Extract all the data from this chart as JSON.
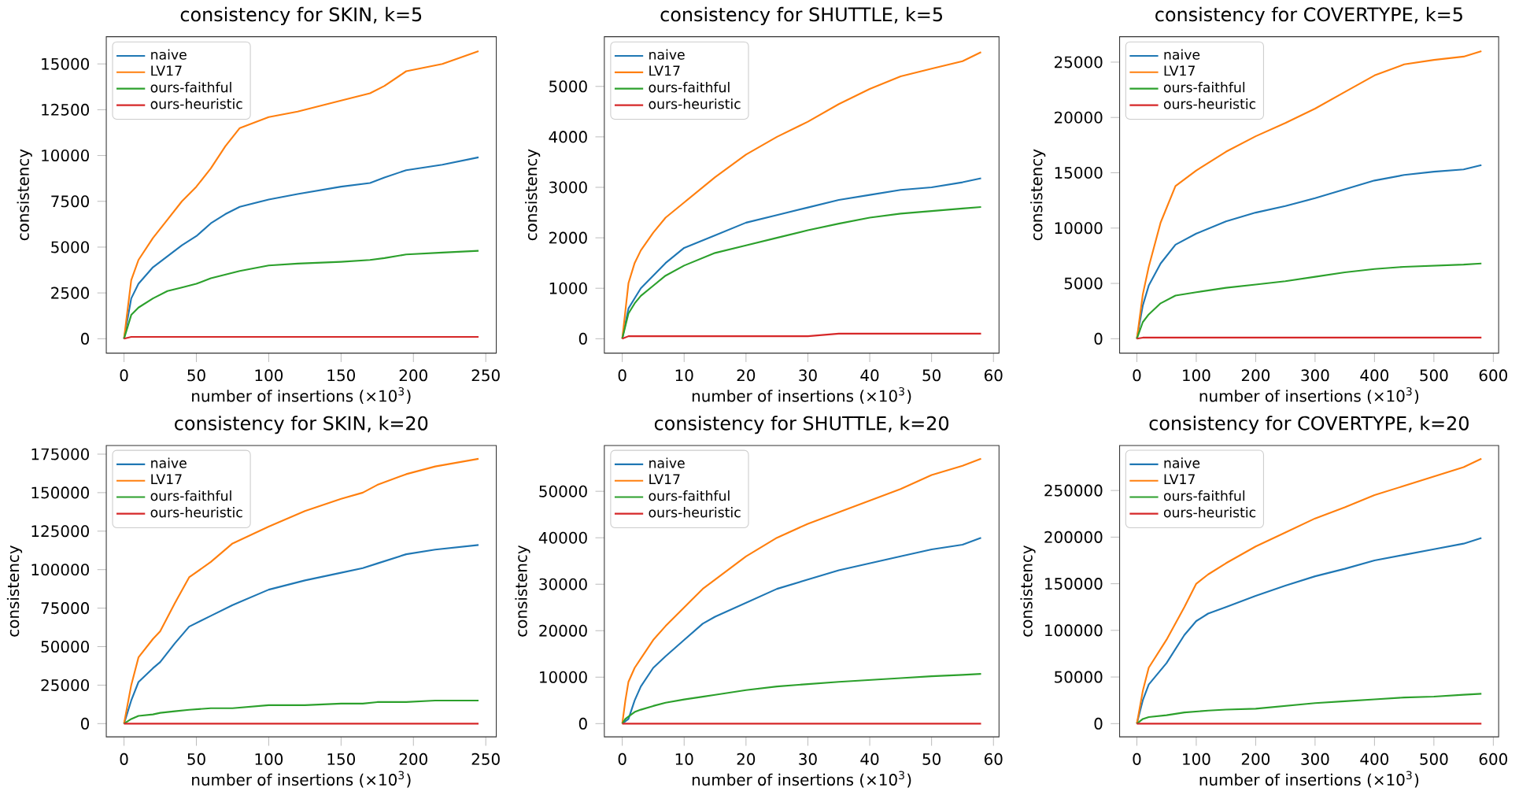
{
  "chart_data": [
    {
      "type": "line",
      "title": "consistency for SKIN, k=5",
      "xlabel": "number of insertions (×10$^{3}$)",
      "ylabel": "consistency",
      "legend": "top left",
      "x": [
        0,
        5,
        10,
        20,
        30,
        40,
        50,
        60,
        70,
        80,
        100,
        120,
        150,
        170,
        180,
        195,
        220,
        245
      ],
      "xlim": [
        -12.25,
        257.25
      ],
      "ylim": [
        -785,
        16485
      ],
      "xticks": [
        0,
        50,
        100,
        150,
        200,
        250
      ],
      "yticks": [
        0,
        2500,
        5000,
        7500,
        10000,
        12500,
        15000
      ],
      "series": [
        {
          "name": "naive",
          "color": "#1f77b4",
          "values": [
            0,
            2200,
            3000,
            3900,
            4500,
            5100,
            5600,
            6300,
            6800,
            7200,
            7600,
            7900,
            8300,
            8500,
            8800,
            9200,
            9500,
            9900
          ]
        },
        {
          "name": "LV17",
          "color": "#ff7f0e",
          "values": [
            0,
            3200,
            4300,
            5500,
            6500,
            7500,
            8300,
            9300,
            10500,
            11500,
            12100,
            12400,
            13000,
            13400,
            13800,
            14600,
            15000,
            15700
          ]
        },
        {
          "name": "ours-faithful",
          "color": "#2ca02c",
          "values": [
            0,
            1300,
            1700,
            2200,
            2600,
            2800,
            3000,
            3300,
            3500,
            3700,
            4000,
            4100,
            4200,
            4300,
            4400,
            4600,
            4700,
            4800
          ]
        },
        {
          "name": "ours-heuristic",
          "color": "#d62728",
          "values": [
            0,
            100,
            100,
            100,
            100,
            100,
            100,
            100,
            100,
            100,
            100,
            100,
            100,
            100,
            100,
            100,
            100,
            100
          ]
        }
      ]
    },
    {
      "type": "line",
      "title": "consistency for SHUTTLE, k=5",
      "xlabel": "number of insertions (×10$^{3}$)",
      "ylabel": "consistency",
      "legend": "top left",
      "x": [
        0,
        1,
        2,
        3,
        5,
        7,
        10,
        15,
        20,
        25,
        30,
        35,
        40,
        45,
        50,
        55,
        58
      ],
      "xlim": [
        -2.9,
        60.9
      ],
      "ylim": [
        -285,
        5985
      ],
      "xticks": [
        0,
        10,
        20,
        30,
        40,
        50,
        60
      ],
      "yticks": [
        0,
        1000,
        2000,
        3000,
        4000,
        5000
      ],
      "series": [
        {
          "name": "naive",
          "color": "#1f77b4",
          "values": [
            0,
            600,
            800,
            1000,
            1250,
            1500,
            1800,
            2050,
            2300,
            2450,
            2600,
            2750,
            2850,
            2950,
            3000,
            3100,
            3180
          ]
        },
        {
          "name": "LV17",
          "color": "#ff7f0e",
          "values": [
            0,
            1100,
            1500,
            1750,
            2100,
            2400,
            2700,
            3200,
            3650,
            4000,
            4300,
            4650,
            4950,
            5200,
            5350,
            5500,
            5680
          ]
        },
        {
          "name": "ours-faithful",
          "color": "#2ca02c",
          "values": [
            0,
            500,
            700,
            850,
            1050,
            1250,
            1450,
            1700,
            1850,
            2000,
            2150,
            2280,
            2400,
            2480,
            2530,
            2580,
            2610
          ]
        },
        {
          "name": "ours-heuristic",
          "color": "#d62728",
          "values": [
            0,
            50,
            50,
            50,
            50,
            50,
            50,
            50,
            50,
            50,
            50,
            100,
            100,
            100,
            100,
            100,
            100
          ]
        }
      ]
    },
    {
      "type": "line",
      "title": "consistency for COVERTYPE, k=5",
      "xlabel": "number of insertions (×10$^{3}$)",
      "ylabel": "consistency",
      "legend": "top left",
      "x": [
        0,
        10,
        20,
        40,
        65,
        100,
        150,
        200,
        250,
        300,
        350,
        400,
        450,
        500,
        550,
        580
      ],
      "xlim": [
        -29,
        609
      ],
      "ylim": [
        -1300,
        27300
      ],
      "xticks": [
        0,
        100,
        200,
        300,
        400,
        500,
        600
      ],
      "yticks": [
        0,
        5000,
        10000,
        15000,
        20000,
        25000
      ],
      "series": [
        {
          "name": "naive",
          "color": "#1f77b4",
          "values": [
            0,
            3000,
            4800,
            6800,
            8500,
            9500,
            10600,
            11400,
            12000,
            12700,
            13500,
            14300,
            14800,
            15100,
            15300,
            15700
          ]
        },
        {
          "name": "LV17",
          "color": "#ff7f0e",
          "values": [
            0,
            4000,
            6500,
            10500,
            13800,
            15200,
            16900,
            18300,
            19500,
            20800,
            22300,
            23800,
            24800,
            25200,
            25500,
            26000
          ]
        },
        {
          "name": "ours-faithful",
          "color": "#2ca02c",
          "values": [
            0,
            1500,
            2200,
            3200,
            3900,
            4200,
            4600,
            4900,
            5200,
            5600,
            6000,
            6300,
            6500,
            6600,
            6700,
            6800
          ]
        },
        {
          "name": "ours-heuristic",
          "color": "#d62728",
          "values": [
            0,
            100,
            100,
            100,
            100,
            100,
            100,
            100,
            100,
            100,
            100,
            100,
            100,
            100,
            100,
            100
          ]
        }
      ]
    },
    {
      "type": "line",
      "title": "consistency for SKIN, k=20",
      "xlabel": "number of insertions (×10$^{3}$)",
      "ylabel": "consistency",
      "legend": "top left",
      "x": [
        0,
        5,
        10,
        20,
        25,
        35,
        45,
        60,
        75,
        100,
        125,
        150,
        165,
        175,
        195,
        215,
        245
      ],
      "xlim": [
        -12.25,
        257.25
      ],
      "ylim": [
        -8600,
        180600
      ],
      "xticks": [
        0,
        50,
        100,
        150,
        200,
        250
      ],
      "yticks": [
        0,
        25000,
        50000,
        75000,
        100000,
        125000,
        150000,
        175000
      ],
      "series": [
        {
          "name": "naive",
          "color": "#1f77b4",
          "values": [
            0,
            15000,
            27000,
            36000,
            40000,
            52000,
            63000,
            70000,
            77000,
            87000,
            93000,
            98000,
            101000,
            104000,
            110000,
            113000,
            116000
          ]
        },
        {
          "name": "LV17",
          "color": "#ff7f0e",
          "values": [
            0,
            25000,
            43000,
            55000,
            60000,
            78000,
            95000,
            105000,
            117000,
            128000,
            138000,
            146000,
            150000,
            155000,
            162000,
            167000,
            172000
          ]
        },
        {
          "name": "ours-faithful",
          "color": "#2ca02c",
          "values": [
            0,
            3000,
            5000,
            6000,
            7000,
            8000,
            9000,
            10000,
            10000,
            12000,
            12000,
            13000,
            13000,
            14000,
            14000,
            15000,
            15000
          ]
        },
        {
          "name": "ours-heuristic",
          "color": "#d62728",
          "values": [
            0,
            0,
            0,
            0,
            0,
            0,
            0,
            0,
            0,
            0,
            0,
            0,
            0,
            0,
            0,
            0,
            0
          ]
        }
      ]
    },
    {
      "type": "line",
      "title": "consistency for SHUTTLE, k=20",
      "xlabel": "number of insertions (×10$^{3}$)",
      "ylabel": "consistency",
      "legend": "top left",
      "x": [
        0,
        0.5,
        1,
        2,
        3,
        5,
        7,
        10,
        13,
        15,
        20,
        25,
        30,
        35,
        40,
        45,
        50,
        55,
        58
      ],
      "xlim": [
        -2.9,
        60.9
      ],
      "ylim": [
        -2850,
        59850
      ],
      "xticks": [
        0,
        10,
        20,
        30,
        40,
        50,
        60
      ],
      "yticks": [
        0,
        10000,
        20000,
        30000,
        40000,
        50000
      ],
      "series": [
        {
          "name": "naive",
          "color": "#1f77b4",
          "values": [
            0,
            500,
            1000,
            5000,
            8000,
            12000,
            14500,
            18000,
            21500,
            23000,
            26000,
            29000,
            31000,
            33000,
            34500,
            36000,
            37500,
            38500,
            40000
          ]
        },
        {
          "name": "LV17",
          "color": "#ff7f0e",
          "values": [
            0,
            5000,
            9000,
            12000,
            14000,
            18000,
            21000,
            25000,
            29000,
            31000,
            36000,
            40000,
            43000,
            45500,
            48000,
            50500,
            53500,
            55500,
            57000
          ]
        },
        {
          "name": "ours-faithful",
          "color": "#2ca02c",
          "values": [
            0,
            1000,
            1500,
            2500,
            3000,
            3800,
            4500,
            5200,
            5800,
            6200,
            7200,
            8000,
            8500,
            9000,
            9400,
            9800,
            10200,
            10500,
            10700
          ]
        },
        {
          "name": "ours-heuristic",
          "color": "#d62728",
          "values": [
            0,
            0,
            0,
            0,
            0,
            0,
            0,
            0,
            0,
            0,
            0,
            0,
            0,
            0,
            0,
            0,
            0,
            0,
            0
          ]
        }
      ]
    },
    {
      "type": "line",
      "title": "consistency for COVERTYPE, k=20",
      "xlabel": "number of insertions (×10$^{3}$)",
      "ylabel": "consistency",
      "legend": "top left",
      "x": [
        0,
        10,
        20,
        50,
        80,
        100,
        120,
        150,
        200,
        250,
        300,
        350,
        400,
        450,
        500,
        550,
        580
      ],
      "xlim": [
        -29,
        609
      ],
      "ylim": [
        -14200,
        298200
      ],
      "xticks": [
        0,
        100,
        200,
        300,
        400,
        500,
        600
      ],
      "yticks": [
        0,
        50000,
        100000,
        150000,
        200000,
        250000
      ],
      "series": [
        {
          "name": "naive",
          "color": "#1f77b4",
          "values": [
            0,
            25000,
            42000,
            65000,
            95000,
            110000,
            118000,
            125000,
            137000,
            148000,
            158000,
            166000,
            175000,
            181000,
            187000,
            193000,
            199000
          ]
        },
        {
          "name": "LV17",
          "color": "#ff7f0e",
          "values": [
            0,
            35000,
            60000,
            90000,
            125000,
            150000,
            160000,
            172000,
            190000,
            205000,
            220000,
            232000,
            245000,
            255000,
            265000,
            275000,
            284000
          ]
        },
        {
          "name": "ours-faithful",
          "color": "#2ca02c",
          "values": [
            0,
            5000,
            7000,
            9000,
            12000,
            13000,
            14000,
            15000,
            16000,
            19000,
            22000,
            24000,
            26000,
            28000,
            29000,
            31000,
            32000
          ]
        },
        {
          "name": "ours-heuristic",
          "color": "#d62728",
          "values": [
            0,
            0,
            0,
            0,
            0,
            0,
            0,
            0,
            0,
            0,
            0,
            0,
            0,
            0,
            0,
            0,
            0
          ]
        }
      ]
    }
  ]
}
